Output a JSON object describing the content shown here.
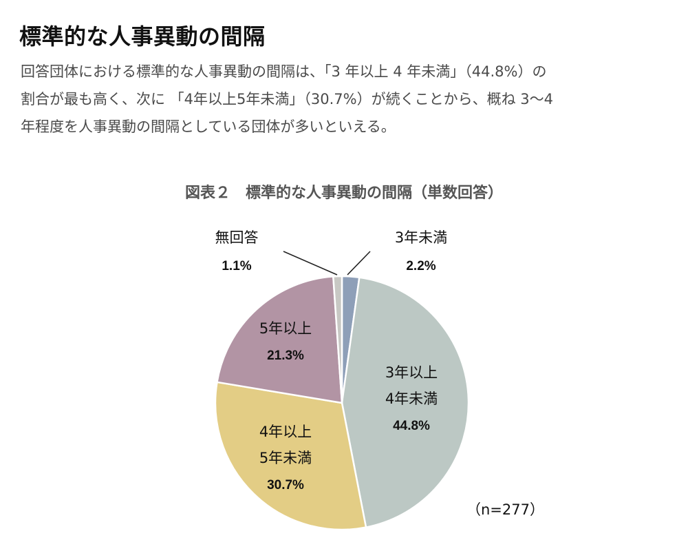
{
  "page": {
    "title": "標準的な人事異動の間隔",
    "description_lines": [
      "回答団体における標準的な人事異動の間隔は、「3 年以上 4 年未満」（44.8%）の",
      "割合が最も高く、次に 「4年以上5年未満」（30.7%）が続くことから、概ね 3〜4",
      "年程度を人事異動の間隔としている団体が多いといえる。"
    ]
  },
  "chart_data": {
    "type": "pie",
    "title": "図表２　標準的な人事異動の間隔（単数回答）",
    "sample_note": "（n=277）",
    "start_angle_deg": 0,
    "direction": "clockwise",
    "slices": [
      {
        "label_lines": [
          "3年未満"
        ],
        "value": 2.2,
        "value_label": "2.2%",
        "color": "#8e9fb8",
        "label_position": "outside"
      },
      {
        "label_lines": [
          "3年以上",
          "4年未満"
        ],
        "value": 44.8,
        "value_label": "44.8%",
        "color": "#bcc8c4",
        "label_position": "inside"
      },
      {
        "label_lines": [
          "4年以上",
          "5年未満"
        ],
        "value": 30.7,
        "value_label": "30.7%",
        "color": "#e3cd85",
        "label_position": "inside"
      },
      {
        "label_lines": [
          "5年以上"
        ],
        "value": 21.3,
        "value_label": "21.3%",
        "color": "#b294a4",
        "label_position": "inside"
      },
      {
        "label_lines": [
          "無回答"
        ],
        "value": 1.1,
        "value_label": "1.1%",
        "color": "#c8c8c4",
        "label_position": "outside"
      }
    ]
  }
}
